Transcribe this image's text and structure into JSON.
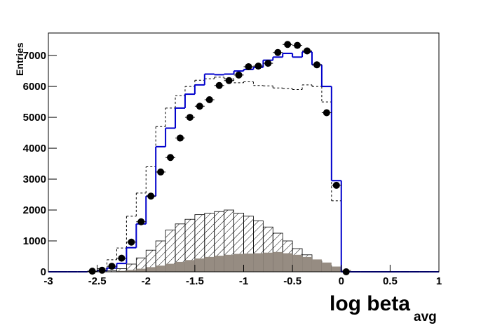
{
  "chart_data": {
    "type": "histogram",
    "y_label": "Entries",
    "x_label": "log beta",
    "x_label_sub": "avg",
    "bins": [
      -3.0,
      -2.9,
      -2.8,
      -2.7,
      -2.6,
      -2.5,
      -2.4,
      -2.3,
      -2.2,
      -2.1,
      -2.0,
      -1.9,
      -1.8,
      -1.7,
      -1.6,
      -1.5,
      -1.4,
      -1.3,
      -1.2,
      -1.1,
      -1.0,
      -0.9,
      -0.8,
      -0.7,
      -0.6,
      -0.5,
      -0.4,
      -0.3,
      -0.2,
      -0.1,
      0.0,
      0.1,
      0.2,
      0.3,
      0.4,
      0.5,
      0.6,
      0.7,
      0.8,
      0.9,
      1.0
    ],
    "series": [
      {
        "style": "hatched",
        "color": "#000000",
        "values": [
          0,
          0,
          0,
          0,
          0,
          0,
          30,
          100,
          250,
          450,
          700,
          1000,
          1350,
          1550,
          1700,
          1850,
          1900,
          1950,
          2000,
          1900,
          1800,
          1650,
          1450,
          1250,
          1000,
          750,
          550,
          350,
          200,
          80,
          0,
          0,
          0,
          0,
          0,
          0,
          0,
          0,
          0,
          0
        ]
      },
      {
        "style": "filled",
        "color": "#968c82",
        "values": [
          0,
          0,
          0,
          0,
          0,
          0,
          10,
          30,
          60,
          100,
          150,
          200,
          260,
          320,
          380,
          430,
          480,
          520,
          550,
          580,
          590,
          600,
          620,
          640,
          600,
          550,
          480,
          400,
          300,
          170,
          60,
          0,
          0,
          0,
          0,
          0,
          0,
          0,
          0,
          0
        ]
      },
      {
        "style": "dashed",
        "color": "#000000",
        "values": [
          0,
          0,
          0,
          0,
          0,
          100,
          390,
          770,
          1800,
          2550,
          3400,
          4700,
          5300,
          5700,
          6000,
          6200,
          6250,
          6300,
          6250,
          6120,
          6150,
          6030,
          6020,
          5950,
          5930,
          5900,
          6050,
          6000,
          5500,
          2300,
          0,
          0,
          0,
          0,
          0,
          0,
          0,
          0,
          0,
          0
        ]
      },
      {
        "style": "step",
        "color": "#0000cc",
        "values": [
          0,
          0,
          0,
          0,
          10,
          40,
          120,
          270,
          780,
          1550,
          2450,
          4050,
          4650,
          5300,
          5750,
          6050,
          6400,
          6380,
          6400,
          6500,
          6550,
          6620,
          6850,
          6950,
          7070,
          6950,
          7120,
          6700,
          6000,
          2950,
          0,
          0,
          0,
          0,
          0,
          0,
          0,
          0,
          0,
          0
        ]
      },
      {
        "style": "points",
        "color": "#000000",
        "values": [
          null,
          null,
          null,
          null,
          20,
          50,
          180,
          440,
          960,
          1620,
          2450,
          3230,
          3700,
          4330,
          5000,
          5360,
          5570,
          6030,
          6190,
          6370,
          6640,
          6660,
          6750,
          7100,
          7360,
          7330,
          7150,
          6700,
          5150,
          2800,
          0,
          null,
          null,
          null,
          null,
          null,
          null,
          null,
          null,
          null
        ]
      }
    ],
    "xlim": [
      -3,
      1
    ],
    "xticks": [
      -3,
      -2.5,
      -2,
      -1.5,
      -1,
      -0.5,
      0,
      0.5,
      1
    ],
    "ylim": [
      0,
      7730
    ],
    "yticks": [
      0,
      1000,
      2000,
      3000,
      4000,
      5000,
      6000,
      7000
    ]
  }
}
